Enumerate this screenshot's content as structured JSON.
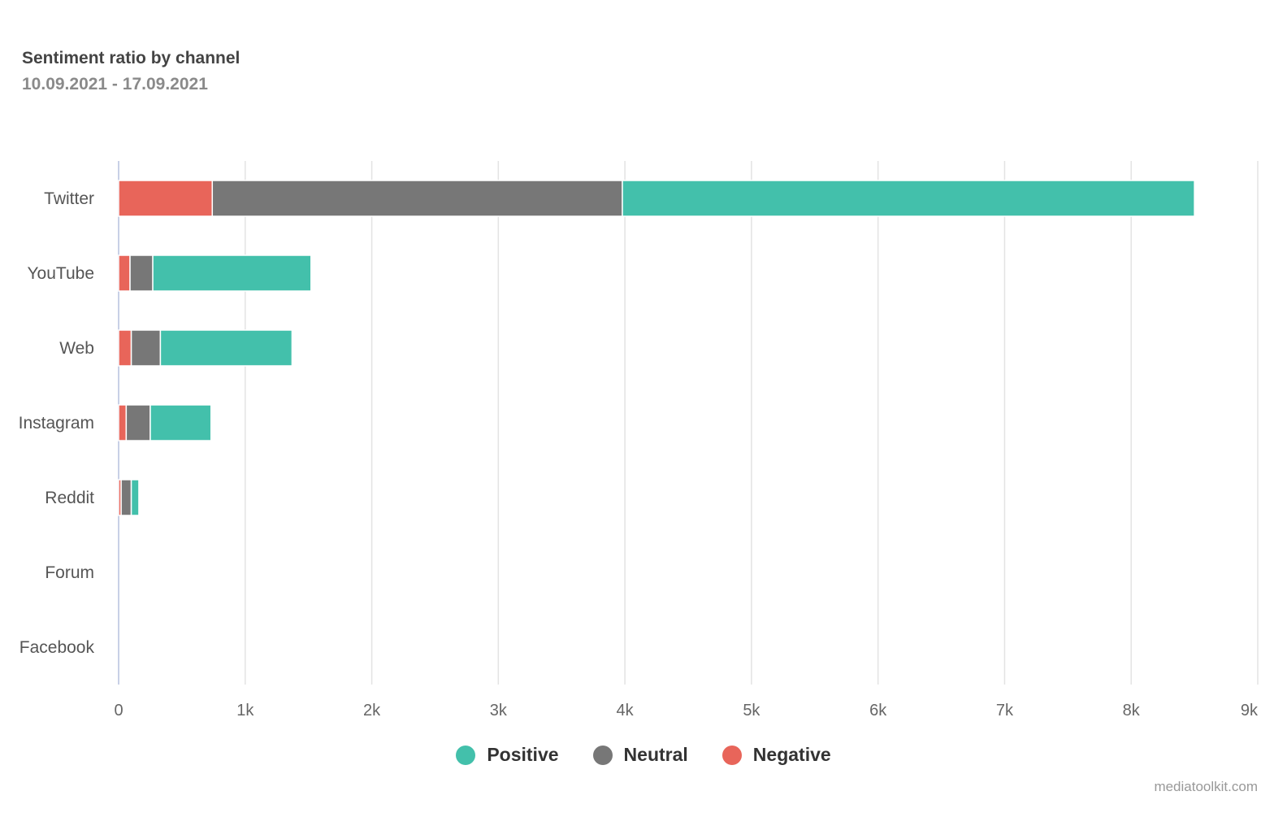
{
  "chart_data": {
    "type": "bar",
    "orientation": "horizontal",
    "stacked": true,
    "title": "Sentiment ratio by channel",
    "subtitle": "10.09.2021 - 17.09.2021",
    "categories": [
      "Twitter",
      "YouTube",
      "Web",
      "Instagram",
      "Reddit",
      "Forum",
      "Facebook"
    ],
    "series": [
      {
        "name": "Negative",
        "color": "#e8655a",
        "values": [
          740,
          90,
          100,
          60,
          20,
          0,
          0
        ]
      },
      {
        "name": "Neutral",
        "color": "#777777",
        "values": [
          3240,
          180,
          230,
          190,
          80,
          0,
          0
        ]
      },
      {
        "name": "Positive",
        "color": "#43c0ab",
        "values": [
          4520,
          1250,
          1040,
          480,
          60,
          0,
          0
        ]
      }
    ],
    "xaxis": {
      "min": 0,
      "max": 9000,
      "ticks": [
        0,
        1000,
        2000,
        3000,
        4000,
        5000,
        6000,
        7000,
        8000,
        9000
      ],
      "tick_labels": [
        "0",
        "1k",
        "2k",
        "3k",
        "4k",
        "5k",
        "6k",
        "7k",
        "8k",
        "9k"
      ]
    },
    "grid": true,
    "legend": {
      "position": "bottom-center",
      "order": [
        "Positive",
        "Neutral",
        "Negative"
      ]
    }
  },
  "legend_labels": {
    "positive": "Positive",
    "neutral": "Neutral",
    "negative": "Negative"
  },
  "colors": {
    "positive": "#43c0ab",
    "neutral": "#777777",
    "negative": "#e8655a"
  },
  "credit": "mediatoolkit.com"
}
